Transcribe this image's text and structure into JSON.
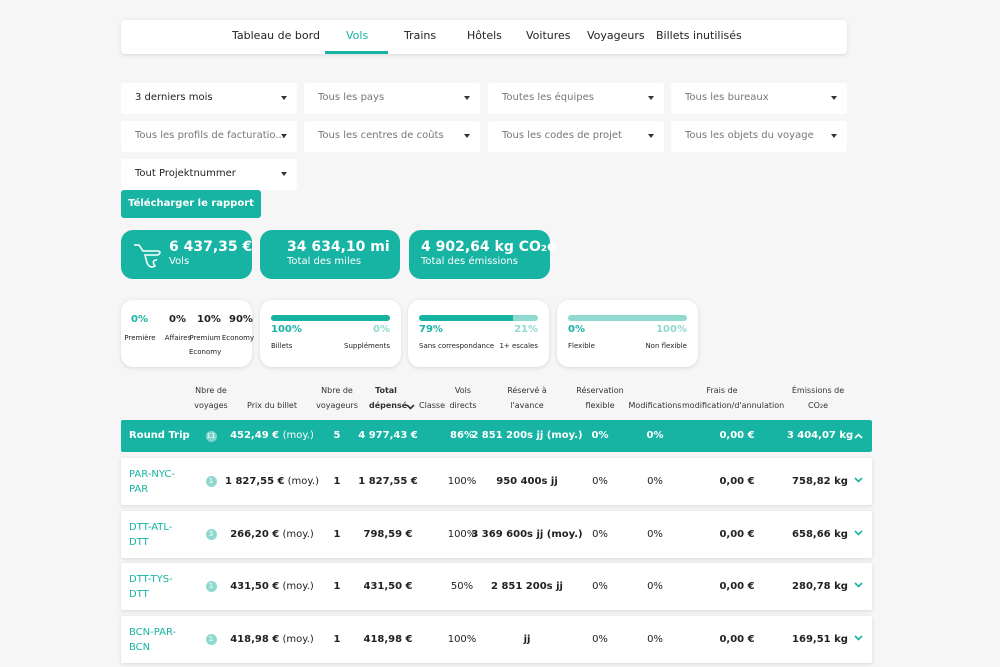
{
  "nav": {
    "tabs": [
      "Tableau de bord",
      "Vols",
      "Trains",
      "Hôtels",
      "Voitures",
      "Voyageurs",
      "Billets inutilisés"
    ]
  },
  "filters": [
    "3 derniers mois",
    "Tous les pays",
    "Toutes les équipes",
    "Tous les bureaux",
    "Tous les profils de facturatio...",
    "Tous les centres de coûts",
    "Tous les codes de projet",
    "Tous les objets du voyage",
    "Tout Projektnummer"
  ],
  "download_button": "Télécharger le rapport",
  "kpis": [
    {
      "value": "6 437,35 €",
      "label": "Vols"
    },
    {
      "value": "34 634,10 mi",
      "label": "Total des miles"
    },
    {
      "value": "4 902,64 kg CO₂e",
      "label": "Total des émissions"
    }
  ],
  "class_breakdown": [
    {
      "pct": "0%",
      "label": "Première"
    },
    {
      "pct": "0%",
      "label": "Affaires"
    },
    {
      "pct": "10%",
      "label": "Premium Economy"
    },
    {
      "pct": "90%",
      "label": "Economy"
    }
  ],
  "split_cards": [
    {
      "left": {
        "value": 100,
        "label": "100%"
      },
      "right": {
        "value": 0,
        "label": "0%"
      },
      "left_label": "Billets",
      "right_label": "Suppléments"
    },
    {
      "left": {
        "value": 79,
        "label": "79%"
      },
      "right": {
        "value": 21,
        "label": "21%"
      },
      "left_label": "Sans correspondance",
      "right_label": "1+ escales"
    },
    {
      "left": {
        "value": 0,
        "label": "0%"
      },
      "right": {
        "value": 100,
        "label": "100%"
      },
      "left_label": "Flexible",
      "right_label": "Non flexible"
    }
  ],
  "table": {
    "headers": [
      "Nbre de voyages",
      "Prix du billet",
      "Nbre de voyageurs",
      "Total dépensé",
      "Classe",
      "Vols directs",
      "Réservé à l'avance",
      "Réservation flexible",
      "Modifications",
      "Frais de modification/d'annulation",
      "Émissions de CO₂e"
    ],
    "summary": {
      "name": "Round Trip",
      "trips": 11,
      "price": "452,49 €",
      "price_note": "(moy.)",
      "travelers": 5,
      "total": "4 977,43 €",
      "direct": "86%",
      "advance": "2 851 200s jj (moy.)",
      "flexible": "0%",
      "modifications": "0%",
      "fees": "0,00 €",
      "emissions": "3 404,07 kg"
    },
    "rows": [
      {
        "name": "PAR-NYC-PAR",
        "trips": 1,
        "price": "1 827,55 €",
        "price_note": "(moy.)",
        "travelers": 1,
        "total": "1 827,55 €",
        "direct": "100%",
        "advance": "950 400s jj",
        "flexible": "0%",
        "modifications": "0%",
        "fees": "0,00 €",
        "emissions": "758,82 kg"
      },
      {
        "name": "DTT-ATL-DTT",
        "trips": 3,
        "price": "266,20 €",
        "price_note": "(moy.)",
        "travelers": 1,
        "total": "798,59 €",
        "direct": "100%",
        "advance": "3 369 600s jj (moy.)",
        "flexible": "0%",
        "modifications": "0%",
        "fees": "0,00 €",
        "emissions": "658,66 kg"
      },
      {
        "name": "DTT-TYS-DTT",
        "trips": 1,
        "price": "431,50 €",
        "price_note": "(moy.)",
        "travelers": 1,
        "total": "431,50 €",
        "direct": "50%",
        "advance": "2 851 200s jj",
        "flexible": "0%",
        "modifications": "0%",
        "fees": "0,00 €",
        "emissions": "280,78 kg"
      },
      {
        "name": "BCN-PAR-BCN",
        "trips": 1,
        "price": "418,98 €",
        "price_note": "(moy.)",
        "travelers": 1,
        "total": "418,98 €",
        "direct": "100%",
        "advance": "jj",
        "flexible": "0%",
        "modifications": "0%",
        "fees": "0,00 €",
        "emissions": "169,51 kg"
      }
    ]
  }
}
